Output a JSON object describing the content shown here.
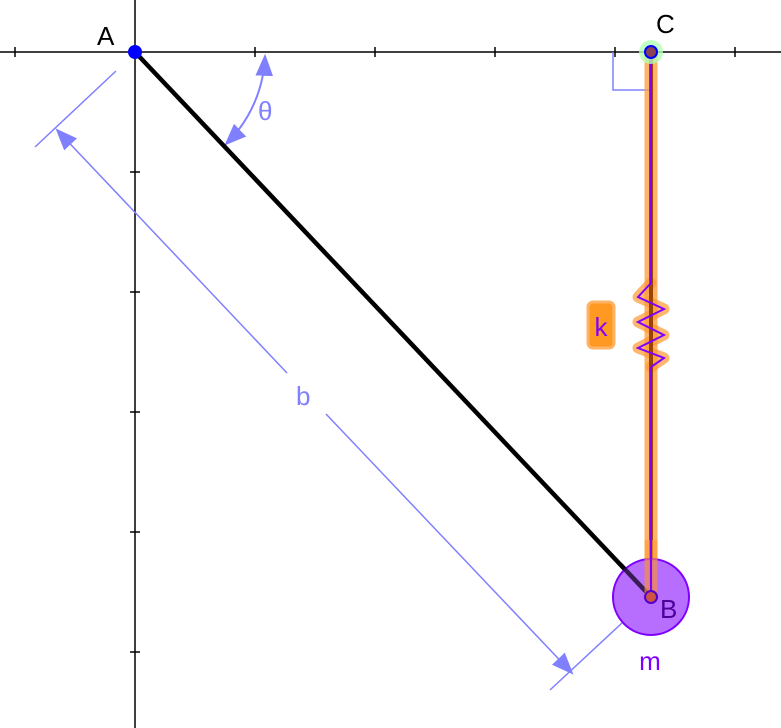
{
  "labels": {
    "point_a": "A",
    "point_b": "B",
    "point_c": "C",
    "angle": "θ",
    "length": "b",
    "spring_constant": "k",
    "mass": "m"
  },
  "colors": {
    "axis": "#000000",
    "rod": "#000000",
    "dimension": "#8080ff",
    "spring_glow": "#ff9933",
    "spring_line": "#7f00ff",
    "mass_fill": "#aa55ff",
    "point_a": "#0000ff",
    "point_c_highlight": "#b3ffb3"
  }
}
